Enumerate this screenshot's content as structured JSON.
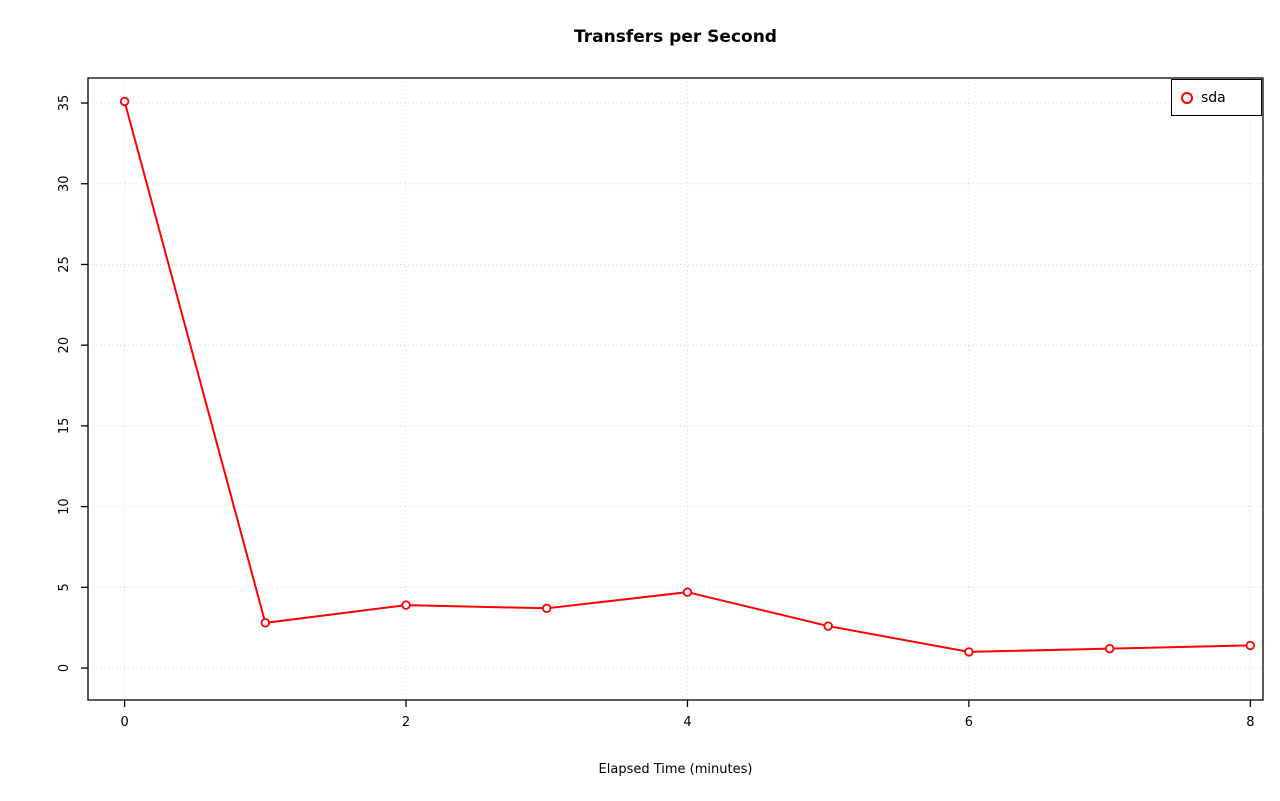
{
  "page": {
    "background": "#ffffff"
  },
  "chart_data": {
    "type": "line",
    "title": "Transfers per Second",
    "xlabel": "Elapsed Time (minutes)",
    "ylabel": "",
    "x": [
      0,
      1,
      2,
      3,
      4,
      5,
      6,
      7,
      8
    ],
    "series": [
      {
        "name": "sda",
        "color": "#ff0000",
        "marker": "open-circle",
        "values": [
          35.1,
          2.8,
          3.9,
          3.7,
          4.7,
          2.6,
          1.0,
          1.2,
          1.4
        ]
      }
    ],
    "xlim": [
      -0.26,
      8.09
    ],
    "ylim": [
      -1.98,
      36.55
    ],
    "x_ticks": [
      0,
      2,
      4,
      6,
      8
    ],
    "y_ticks": [
      0,
      5,
      10,
      15,
      20,
      25,
      30,
      35
    ],
    "grid": true,
    "grid_style": "dotted",
    "grid_color": "#d4d4d4",
    "axis_color": "#000000",
    "legend_position": "top-right"
  }
}
